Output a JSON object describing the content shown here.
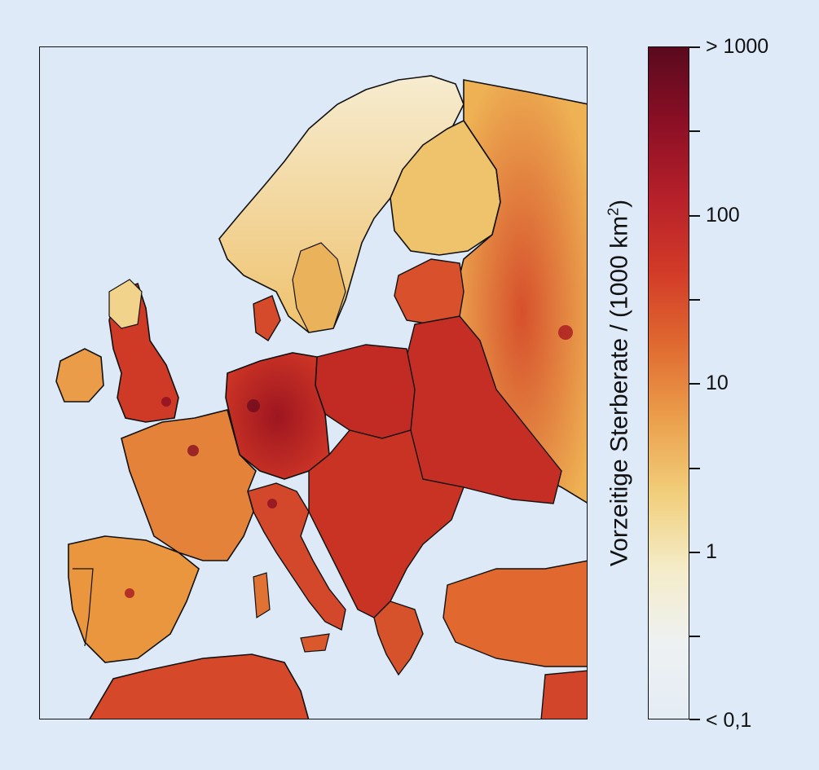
{
  "map": {
    "region": "Europa",
    "colors": {
      "background_sea": "#dde9f6",
      "low": "#f8f0cf",
      "mid_low": "#f0c66a",
      "mid": "#e78a3f",
      "high": "#d6452a",
      "very_high": "#a5181e",
      "max": "#5a0a1e",
      "border": "#111111"
    }
  },
  "legend": {
    "title_prefix": "Vorzeitige Sterberate / (1000 km",
    "title_exponent": "2",
    "title_suffix": ")",
    "labels": {
      "top": "> 1000",
      "l100": "100",
      "l10": "10",
      "l1": "1",
      "bottom": "< 0,1"
    },
    "gradient_stops": [
      "#5a0a1e",
      "#8b0f25",
      "#b6202a",
      "#d23a28",
      "#e06a30",
      "#eba04c",
      "#f1cf7c",
      "#f4ecc9",
      "#eef1f3",
      "#e4ecf4"
    ]
  }
}
